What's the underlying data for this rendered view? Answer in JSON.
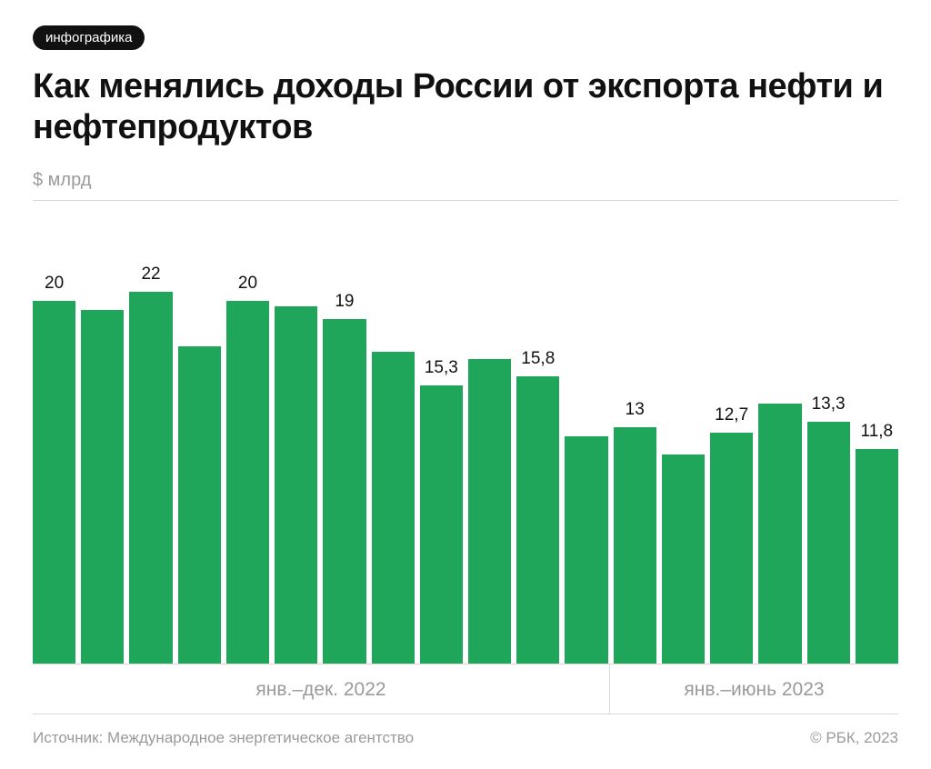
{
  "badge": "инфографика",
  "title": "Как менялись доходы России от экспорта нефти и нефтепродуктов",
  "ylabel": "$ млрд",
  "chart": {
    "type": "bar",
    "bar_color": "#1fa65a",
    "background_color": "#ffffff",
    "grid_color": "#d8d8d8",
    "label_color": "#111111",
    "muted_text_color": "#9a9a9a",
    "ylim": [
      0,
      22
    ],
    "label_fontsize": 19,
    "title_fontsize": 38,
    "bars": [
      {
        "value": 20,
        "label": "20",
        "show_label": true
      },
      {
        "value": 19.5,
        "label": "",
        "show_label": false
      },
      {
        "value": 22,
        "label": "22",
        "show_label": true
      },
      {
        "value": 17.5,
        "label": "",
        "show_label": false
      },
      {
        "value": 20,
        "label": "20",
        "show_label": true
      },
      {
        "value": 19.7,
        "label": "",
        "show_label": false
      },
      {
        "value": 19,
        "label": "19",
        "show_label": true
      },
      {
        "value": 17.2,
        "label": "",
        "show_label": false
      },
      {
        "value": 15.3,
        "label": "15,3",
        "show_label": true
      },
      {
        "value": 16.8,
        "label": "",
        "show_label": false
      },
      {
        "value": 15.8,
        "label": "15,8",
        "show_label": true
      },
      {
        "value": 12.5,
        "label": "",
        "show_label": false
      },
      {
        "value": 13,
        "label": "13",
        "show_label": true
      },
      {
        "value": 11.5,
        "label": "",
        "show_label": false
      },
      {
        "value": 12.7,
        "label": "12,7",
        "show_label": true
      },
      {
        "value": 14.3,
        "label": "",
        "show_label": false
      },
      {
        "value": 13.3,
        "label": "13,3",
        "show_label": true
      },
      {
        "value": 11.8,
        "label": "11,8",
        "show_label": true
      }
    ],
    "x_groups": [
      {
        "label": "янв.–дек. 2022",
        "span": 12
      },
      {
        "label": "янв.–июнь 2023",
        "span": 6
      }
    ]
  },
  "source": "Источник: Международное энергетическое агентство",
  "attribution": "© РБК, 2023"
}
